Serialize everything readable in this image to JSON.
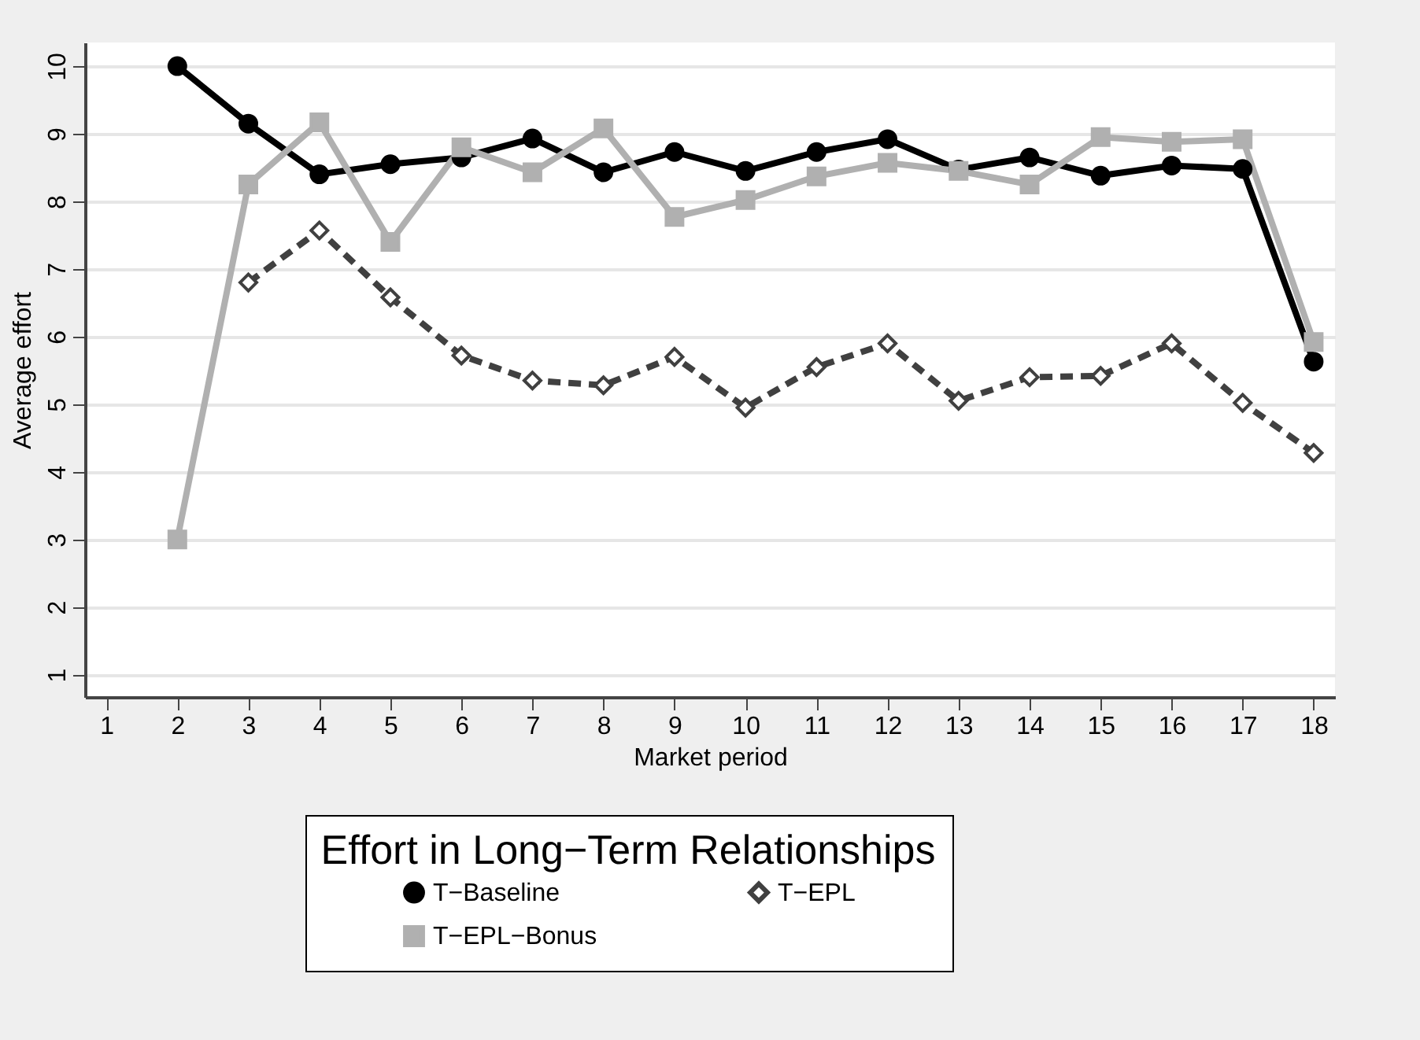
{
  "chart_data": {
    "type": "line",
    "xlabel": "Market period",
    "ylabel": "Average effort",
    "legend_title": "Effort in Long−Term Relationships",
    "legend": "bottom",
    "grid": "y",
    "x": [
      2,
      3,
      4,
      5,
      6,
      7,
      8,
      9,
      10,
      11,
      12,
      13,
      14,
      15,
      16,
      17,
      18
    ],
    "xlim": [
      0.7,
      18.3
    ],
    "xticks": [
      1,
      2,
      3,
      4,
      5,
      6,
      7,
      8,
      9,
      10,
      11,
      12,
      13,
      14,
      15,
      16,
      17,
      18
    ],
    "ylim": [
      0.67,
      10.35
    ],
    "yticks": [
      1,
      2,
      3,
      4,
      5,
      6,
      7,
      8,
      9,
      10
    ],
    "series": [
      {
        "name": "T−Baseline",
        "color": "#000000",
        "marker": "circle",
        "line_style": "solid",
        "values": [
          10,
          9.15,
          8.4,
          8.55,
          8.65,
          8.93,
          8.43,
          8.73,
          8.45,
          8.73,
          8.92,
          8.47,
          8.65,
          8.38,
          8.53,
          8.48,
          5.63
        ]
      },
      {
        "name": "T−EPL",
        "color": "#404040",
        "marker": "diamond",
        "line_style": "dashed",
        "values": [
          null,
          6.8,
          7.57,
          6.58,
          5.72,
          5.35,
          5.28,
          5.7,
          4.95,
          5.55,
          5.9,
          5.05,
          5.4,
          5.42,
          5.9,
          5.02,
          4.28
        ]
      },
      {
        "name": "T−EPL−Bonus",
        "color": "#b0b0b0",
        "marker": "square",
        "line_style": "solid",
        "values": [
          3,
          8.25,
          9.17,
          7.4,
          8.8,
          8.43,
          9.08,
          7.77,
          8.02,
          8.37,
          8.57,
          8.45,
          8.25,
          8.95,
          8.88,
          8.92,
          5.92
        ]
      }
    ]
  }
}
